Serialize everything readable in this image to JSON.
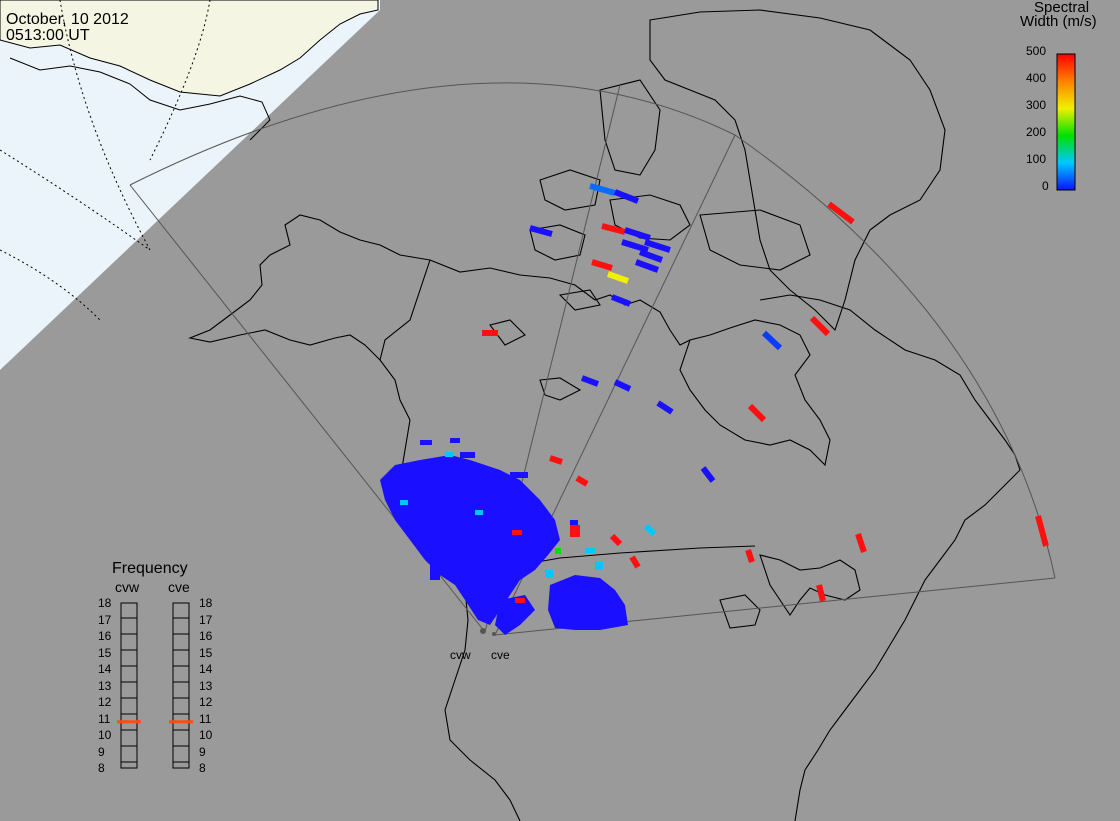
{
  "header": {
    "date": "October, 10 2012",
    "time": "0513:00 UT"
  },
  "colorbar": {
    "title_line1": "Spectral",
    "title_line2": "Width (m/s)",
    "ticks": [
      "500",
      "400",
      "300",
      "200",
      "100",
      "0"
    ],
    "stops": [
      "#0a14ff",
      "#00c8ff",
      "#00e000",
      "#f0f000",
      "#ff8000",
      "#ff0000"
    ]
  },
  "frequency_panel": {
    "title": "Frequency",
    "radars": [
      "cvw",
      "cve"
    ],
    "ticks": [
      "18",
      "17",
      "16",
      "15",
      "14",
      "13",
      "12",
      "11",
      "10",
      "9",
      "8"
    ],
    "cvw_value_mhz": 10.8,
    "cve_value_mhz": 10.8
  },
  "sites": {
    "west": "cvw",
    "east": "cve"
  },
  "colors": {
    "ocean": "#9a9a9a",
    "daylit_land": "#f5f5e4",
    "daylit_sea": "#eaf4fa",
    "coast": "#000000",
    "echo_low": "#1a10ff",
    "echo_high": "#ff1010"
  }
}
